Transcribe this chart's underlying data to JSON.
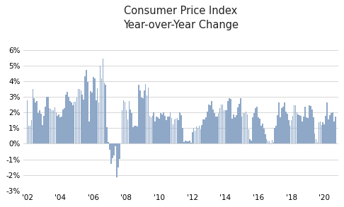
{
  "title": "Consumer Price Index\nYear-over-Year Change",
  "bar_color": "#8fa8c8",
  "background_color": "#ffffff",
  "grid_color": "#d0d0d0",
  "ylim": [
    -0.03,
    0.07
  ],
  "yticks": [
    -0.03,
    -0.02,
    -0.01,
    0.0,
    0.01,
    0.02,
    0.03,
    0.04,
    0.05,
    0.06
  ],
  "xtick_labels": [
    "'02",
    "'04",
    "'06",
    "'08",
    "'10",
    "'12",
    "'14",
    "'16",
    "'18",
    "'20"
  ],
  "values": [
    0.0277,
    0.0114,
    0.0114,
    0.0149,
    0.0349,
    0.0291,
    0.0264,
    0.0272,
    0.0195,
    0.0214,
    0.0191,
    0.0119,
    0.0177,
    0.0235,
    0.03,
    0.0298,
    0.0228,
    0.0224,
    0.0215,
    0.0216,
    0.0232,
    0.0199,
    0.0177,
    0.0188,
    0.0169,
    0.0174,
    0.0217,
    0.0228,
    0.0313,
    0.033,
    0.0299,
    0.0271,
    0.0263,
    0.0244,
    0.0267,
    0.0268,
    0.0295,
    0.035,
    0.0351,
    0.0339,
    0.0313,
    0.0282,
    0.043,
    0.0472,
    0.0397,
    0.0141,
    0.0335,
    0.0326,
    0.0428,
    0.0416,
    0.0276,
    0.0355,
    0.0266,
    0.05,
    0.0417,
    0.0545,
    0.0391,
    0.0379,
    0.0107,
    0.0009,
    -0.0038,
    -0.013,
    -0.0094,
    -0.0073,
    -0.0018,
    -0.0214,
    -0.0154,
    -0.0099,
    0.0,
    0.0216,
    0.0278,
    0.027,
    0.0214,
    0.0156,
    0.0272,
    0.022,
    0.0198,
    0.0106,
    0.0113,
    0.0115,
    0.0109,
    0.0376,
    0.0342,
    0.0296,
    0.0289,
    0.034,
    0.038,
    0.0308,
    0.036,
    0.0178,
    0.0171,
    0.0177,
    0.0199,
    0.0143,
    0.0175,
    0.017,
    0.0159,
    0.0197,
    0.0185,
    0.02,
    0.0177,
    0.015,
    0.0172,
    0.0175,
    0.0199,
    0.0166,
    0.0122,
    0.0157,
    0.0158,
    0.0164,
    0.0151,
    0.02,
    0.0182,
    0.01,
    0.001,
    0.002,
    0.0017,
    0.0017,
    0.0022,
    0.0008,
    0.0073,
    0.0099,
    0.0085,
    0.0111,
    0.0101,
    0.0117,
    0.009,
    0.0118,
    0.0156,
    0.0157,
    0.0169,
    0.0207,
    0.0251,
    0.0247,
    0.0274,
    0.022,
    0.0195,
    0.0172,
    0.0173,
    0.0197,
    0.0226,
    0.0252,
    0.0249,
    0.0213,
    0.0212,
    0.0216,
    0.0275,
    0.0292,
    0.0288,
    0.0162,
    0.0188,
    0.017,
    0.0182,
    0.0232,
    0.0256,
    0.0291,
    0.0175,
    0.0198,
    0.0194,
    0.0203,
    0.0185,
    0.0094,
    0.0027,
    0.0022,
    0.017,
    0.0198,
    0.0228,
    0.0235,
    0.0167,
    0.0161,
    0.0114,
    0.0128,
    0.0098,
    0.0059,
    0.0027,
    0.0022,
    0.0017,
    -0.0002,
    0.0025,
    0.0012,
    0.01,
    0.0117,
    0.0184,
    0.0265,
    0.0168,
    0.0227,
    0.0239,
    0.0262,
    0.0205,
    0.0191,
    0.015,
    0.0113,
    0.0149,
    0.0179,
    0.0247,
    0.0244,
    0.0199,
    0.0189,
    0.0181,
    0.018,
    0.0143,
    0.0174,
    0.0236,
    0.0167,
    0.0163,
    0.0247,
    0.024,
    0.022,
    0.0171,
    0.0065,
    0.0027,
    0.0012,
    0.0139,
    0.0141,
    0.012,
    0.0136,
    0.0123,
    0.0176,
    0.0262,
    0.0154,
    0.0182,
    0.0198,
    0.0199,
    0.0143,
    0.0174
  ]
}
